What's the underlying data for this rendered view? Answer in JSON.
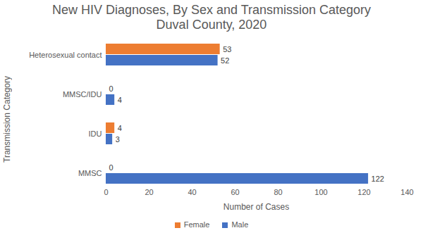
{
  "chart_data": {
    "type": "bar",
    "orientation": "horizontal",
    "title": "New HIV Diagnoses, By Sex and Transmission Category",
    "subtitle": "Duval County, 2020",
    "x_label": "Number of Cases",
    "y_label": "Transmission Category",
    "categories": [
      "Heterosexual contact",
      "MMSC/IDU",
      "IDU",
      "MMSC"
    ],
    "series": [
      {
        "name": "Female",
        "color": "#ed7d31",
        "values": [
          53,
          0,
          4,
          0
        ]
      },
      {
        "name": "Male",
        "color": "#4472c4",
        "values": [
          52,
          4,
          3,
          122
        ]
      }
    ],
    "xlim": [
      0,
      140
    ],
    "xticks": [
      0,
      20,
      40,
      60,
      80,
      100,
      120,
      140
    ],
    "grid": false,
    "data_labels": true,
    "legend": "bottom"
  }
}
